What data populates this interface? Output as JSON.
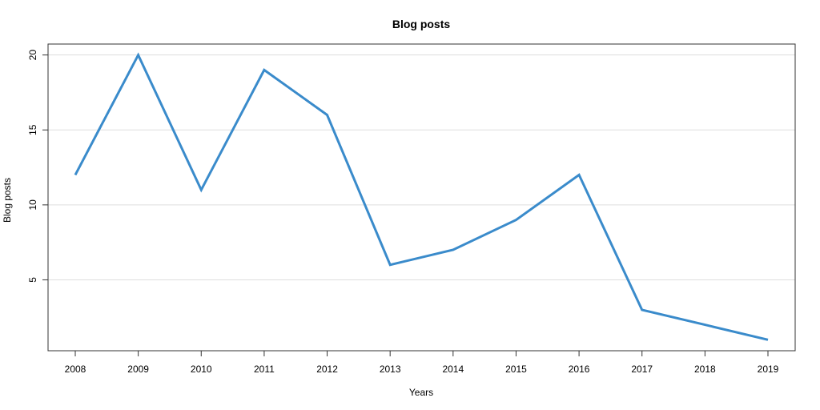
{
  "chart_data": {
    "type": "line",
    "title": "Blog posts",
    "xlabel": "Years",
    "ylabel": "Blog posts",
    "x": [
      "2008",
      "2009",
      "2010",
      "2011",
      "2012",
      "2013",
      "2014",
      "2015",
      "2016",
      "2017",
      "2018",
      "2019"
    ],
    "series": [
      {
        "values": [
          12,
          20,
          11,
          19,
          16,
          6,
          7,
          9,
          12,
          3,
          2,
          1
        ]
      }
    ],
    "y_ticks": [
      "5",
      "10",
      "15",
      "20"
    ],
    "ylim": [
      0.27,
      20.73
    ],
    "grid": "horizontal",
    "colors": {
      "line": "#3a8bcb",
      "grid": "#dddddd",
      "axis": "#333333"
    }
  }
}
